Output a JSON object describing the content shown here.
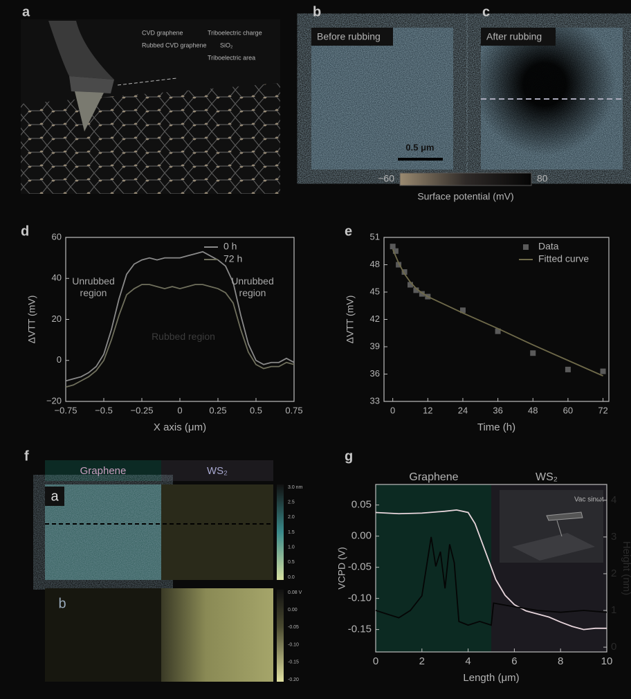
{
  "panels": {
    "a": {
      "label": "a",
      "legend": [
        "CVD graphene",
        "Triboelectric charge",
        "Rubbed CVD graphene",
        "SiO₂",
        "Triboelectric area"
      ]
    },
    "b": {
      "label": "b",
      "title": "Before rubbing",
      "scale_bar": "0.5 μm"
    },
    "c": {
      "label": "c",
      "title": "After rubbing"
    },
    "colorbar": {
      "min": "−60",
      "max": "80",
      "label": "Surface potential (mV)"
    },
    "d": {
      "label": "d"
    },
    "e": {
      "label": "e"
    },
    "f": {
      "label": "f",
      "headers": [
        "Graphene",
        "WS₂"
      ],
      "images": [
        "a",
        "b"
      ],
      "colorbar_a": [
        "3.0 nm",
        "2.5",
        "2.0",
        "1.5",
        "1.0",
        "0.5",
        "0.0"
      ],
      "colorbar_b": [
        "0.08 V",
        "0.00",
        "-0.05",
        "-0.10",
        "-0.15",
        "-0.20"
      ]
    },
    "g": {
      "label": "g",
      "headers": [
        "Graphene",
        "WS₂"
      ],
      "inset": "Vac sinωt"
    }
  },
  "chart_data": [
    {
      "type": "line",
      "xlabel": "X axis (μm)",
      "ylabel": "ΔVTT (mV)",
      "xlim": [
        -0.75,
        0.75
      ],
      "ylim": [
        -20,
        60
      ],
      "xticks": [
        {
          "value": -0.75,
          "label": "−0.75"
        },
        {
          "value": -0.5,
          "label": "−0.5"
        },
        {
          "value": -0.25,
          "label": "−0.25"
        },
        0,
        0.25,
        0.5,
        0.75
      ],
      "yticks": [
        {
          "value": -20,
          "label": "−20"
        },
        0,
        20,
        40,
        60
      ],
      "legend": "upper right",
      "annotations": [
        "Unrubbed region",
        "Unrubbed region",
        "Rubbed region"
      ],
      "x": [
        -0.75,
        -0.7,
        -0.65,
        -0.6,
        -0.55,
        -0.5,
        -0.45,
        -0.4,
        -0.35,
        -0.3,
        -0.25,
        -0.2,
        -0.15,
        -0.1,
        -0.05,
        0,
        0.05,
        0.1,
        0.15,
        0.2,
        0.25,
        0.3,
        0.35,
        0.4,
        0.45,
        0.5,
        0.55,
        0.6,
        0.65,
        0.7,
        0.75
      ],
      "series": [
        {
          "name": "0 h",
          "color": "#8a8a8a",
          "values": [
            -10,
            -9,
            -8,
            -6,
            -3,
            3,
            15,
            30,
            42,
            47,
            49,
            50,
            49,
            50,
            50,
            50,
            51,
            52,
            53,
            51,
            49,
            46,
            38,
            22,
            8,
            0,
            -2,
            -1,
            -1,
            1,
            -1
          ]
        },
        {
          "name": "72 h",
          "color": "#6f6f5c",
          "values": [
            -13,
            -12,
            -10,
            -8,
            -5,
            0,
            10,
            22,
            32,
            35,
            37,
            37,
            36,
            35,
            36,
            35,
            36,
            37,
            37,
            36,
            35,
            33,
            28,
            15,
            4,
            -2,
            -4,
            -3,
            -3,
            -1,
            -2
          ]
        }
      ]
    },
    {
      "type": "scatter",
      "xlabel": "Time (h)",
      "ylabel": "ΔVTT (mV)",
      "xlim": [
        -3,
        74
      ],
      "ylim": [
        33,
        51
      ],
      "xticks": [
        0,
        12,
        24,
        36,
        48,
        60,
        72
      ],
      "yticks": [
        33,
        36,
        39,
        42,
        45,
        48,
        51
      ],
      "legend": "upper right",
      "series": [
        {
          "name": "Data",
          "color": "#5a5a5a",
          "x": [
            0,
            1,
            2,
            4,
            6,
            8,
            10,
            12,
            24,
            36,
            48,
            60,
            72
          ],
          "values": [
            50,
            49.5,
            48,
            47.2,
            45.8,
            45.2,
            44.8,
            44.5,
            43,
            40.7,
            38.3,
            36.5,
            36.3
          ]
        },
        {
          "name": "Fitted curve",
          "type": "line",
          "color": "#6f6a4a",
          "x": [
            0,
            2,
            4,
            6,
            8,
            10,
            12,
            24,
            36,
            48,
            60,
            72
          ],
          "values": [
            49.7,
            48.2,
            47,
            46.1,
            45.4,
            44.9,
            44.5,
            42.7,
            41,
            39.2,
            37.5,
            35.8
          ]
        }
      ]
    },
    {
      "type": "line",
      "xlabel": "Length (μm)",
      "ylabel": "VCPD (V)",
      "y2label": "Height (nm)",
      "xlim": [
        0,
        10
      ],
      "ylim": [
        -0.186,
        0.083
      ],
      "y2lim": [
        -0.13,
        4.43
      ],
      "xticks": [
        0,
        2,
        4,
        6,
        8,
        10
      ],
      "yticks": [
        0.05,
        {
          "value": 0,
          "label": "0.00"
        },
        {
          "value": -0.05,
          "label": "-0.05"
        },
        {
          "value": -0.1,
          "label": "-0.10"
        },
        {
          "value": -0.15,
          "label": "-0.15"
        }
      ],
      "y2ticks": [
        0,
        1,
        2,
        3,
        4
      ],
      "series": [
        {
          "color": "#e8d6dc",
          "x": [
            0,
            1,
            2,
            3,
            3.5,
            4,
            4.3,
            4.6,
            4.9,
            5.2,
            5.6,
            6,
            6.5,
            7,
            7.5,
            8,
            8.5,
            9,
            9.5,
            10
          ],
          "values": [
            0.038,
            0.036,
            0.037,
            0.04,
            0.042,
            0.038,
            0.02,
            -0.01,
            -0.04,
            -0.07,
            -0.095,
            -0.11,
            -0.12,
            -0.125,
            -0.13,
            -0.138,
            -0.145,
            -0.15,
            -0.148,
            -0.148
          ]
        },
        {
          "color": "#050505",
          "axis": "y2",
          "x": [
            0,
            0.5,
            1,
            1.5,
            2,
            2.2,
            2.4,
            2.6,
            2.8,
            3,
            3.2,
            3.4,
            3.6,
            4,
            4.5,
            5,
            5.1,
            6,
            7,
            8,
            9,
            10
          ],
          "values": [
            1,
            0.9,
            0.8,
            1,
            1.4,
            2.2,
            3,
            2.2,
            2.6,
            1.6,
            2.8,
            2.3,
            0.7,
            0.6,
            0.7,
            0.6,
            1.2,
            1.1,
            1,
            0.95,
            1,
            0.95
          ]
        }
      ]
    }
  ]
}
